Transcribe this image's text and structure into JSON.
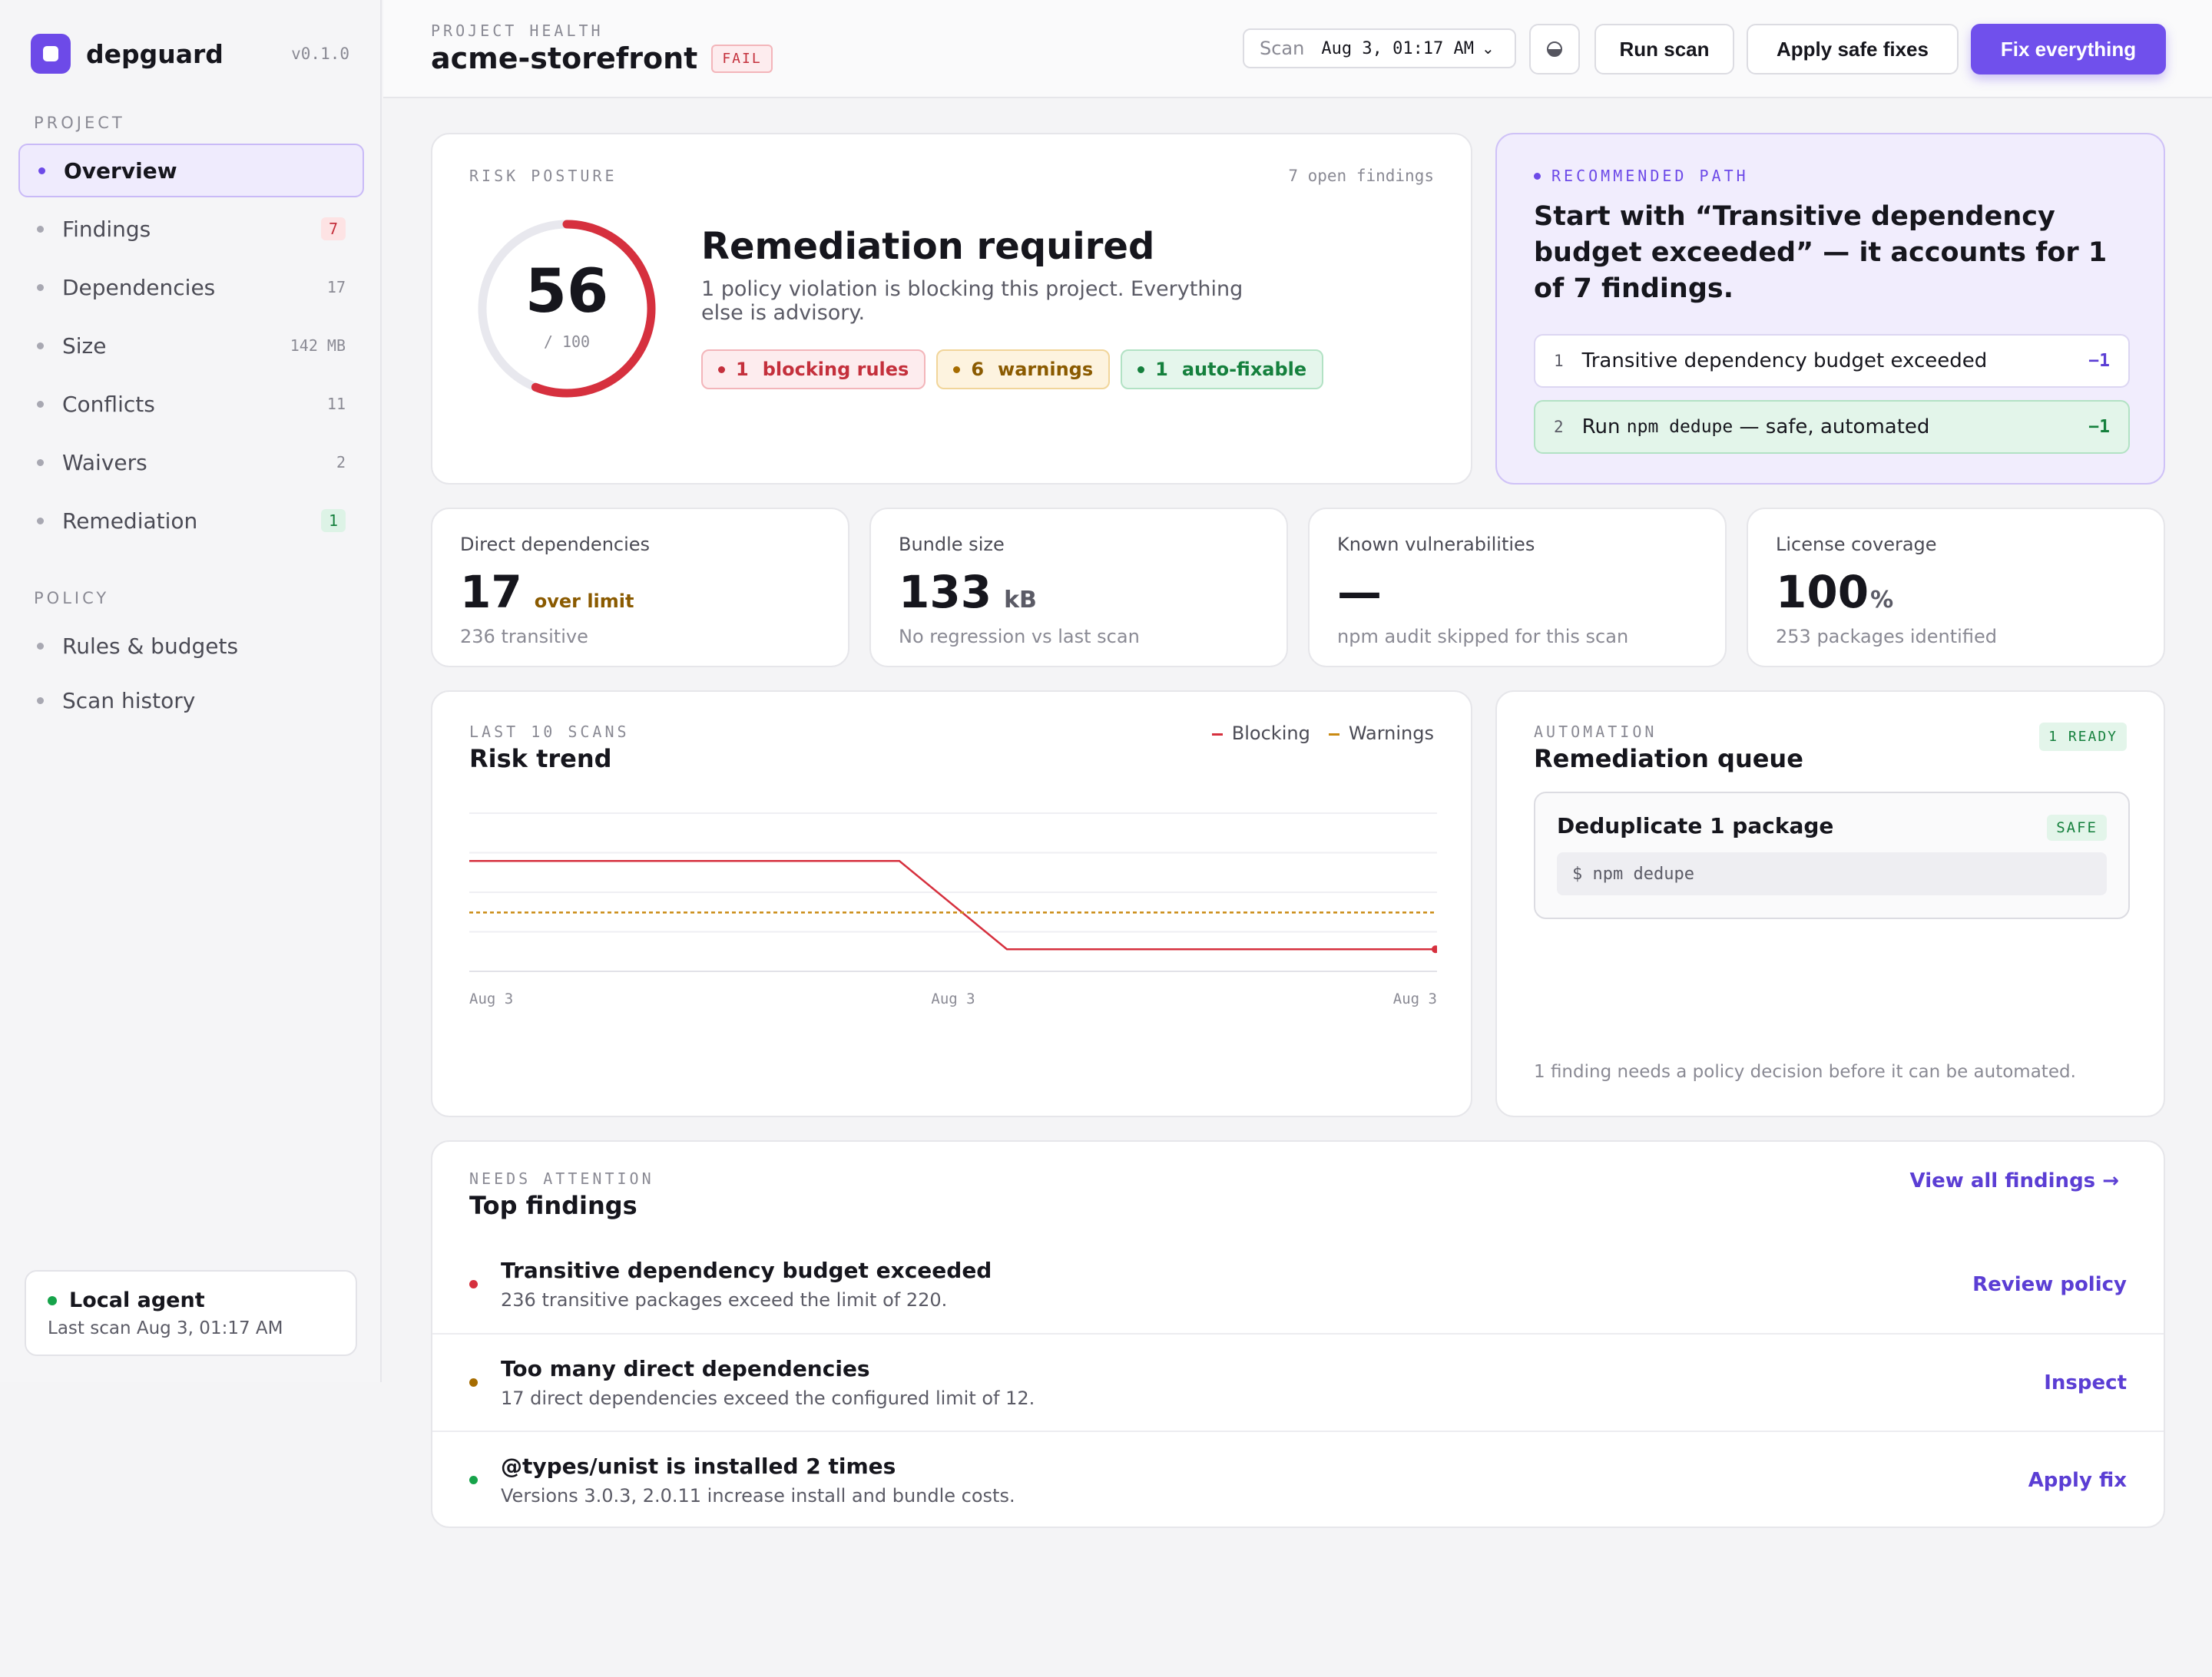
{
  "app": {
    "name": "depguard",
    "version": "v0.1.0"
  },
  "sidebar": {
    "project_label": "PROJECT",
    "items": [
      {
        "label": "Overview",
        "count": ""
      },
      {
        "label": "Findings",
        "count": "7"
      },
      {
        "label": "Dependencies",
        "count": "17"
      },
      {
        "label": "Size",
        "count": "142 MB"
      },
      {
        "label": "Conflicts",
        "count": "11"
      },
      {
        "label": "Waivers",
        "count": "2"
      },
      {
        "label": "Remediation",
        "count": "1"
      }
    ],
    "policy_label": "POLICY",
    "policy_items": [
      {
        "label": "Rules & budgets"
      },
      {
        "label": "Scan history"
      }
    ],
    "agent": {
      "title": "Local agent",
      "subtitle": "Last scan Aug 3, 01:17 AM"
    }
  },
  "header": {
    "label": "PROJECT HEALTH",
    "title": "acme-storefront",
    "status": "FAIL",
    "scan_label": "Scan",
    "scan_value": "Aug 3, 01:17 AM",
    "run_scan": "Run scan",
    "apply_safe": "Apply safe fixes",
    "fix_everything": "Fix everything"
  },
  "posture": {
    "label": "RISK POSTURE",
    "open_findings": "7 open findings",
    "score": "56",
    "score_max": "/ 100",
    "score_fraction": 0.56,
    "title": "Remediation required",
    "description": "1 policy violation is blocking this project. Everything else is advisory.",
    "pills": {
      "blocking_count": "1",
      "blocking_label": "blocking rules",
      "warnings_count": "6",
      "warnings_label": "warnings",
      "autofix_count": "1",
      "autofix_label": "auto-fixable"
    }
  },
  "recommended": {
    "label": "RECOMMENDED PATH",
    "title": "Start with “Transitive dependency budget exceeded” — it accounts for 1 of 7 findings.",
    "step1": {
      "num": "1",
      "text": "Transitive dependency budget exceeded",
      "delta": "−1"
    },
    "step2": {
      "num": "2",
      "text_before": "Run",
      "code": "npm dedupe",
      "text_after": "— safe, automated",
      "delta": "−1"
    }
  },
  "stats": {
    "direct": {
      "label": "Direct dependencies",
      "value": "17",
      "tag": "over limit",
      "sub": "236 transitive"
    },
    "bundle": {
      "label": "Bundle size",
      "value": "133",
      "unit": "kB",
      "sub": "No regression vs last scan"
    },
    "vulns": {
      "label": "Known vulnerabilities",
      "value": "—",
      "sub": "npm audit skipped for this scan"
    },
    "license": {
      "label": "License coverage",
      "value": "100",
      "unit": "%",
      "sub": "253 packages identified"
    }
  },
  "trend": {
    "label": "LAST 10 SCANS",
    "title": "Risk trend",
    "legend_blocking": "Blocking",
    "legend_warnings": "Warnings",
    "colors": {
      "blocking": "#d6303e",
      "warnings": "#c98a12"
    }
  },
  "chart_data": {
    "type": "line",
    "x": [
      "Aug 3",
      "Aug 3",
      "Aug 3",
      "Aug 3",
      "Aug 3",
      "Aug 3",
      "Aug 3",
      "Aug 3",
      "Aug 3",
      "Aug 3"
    ],
    "tick_labels": [
      "Aug 3",
      "Aug 3",
      "Aug 3"
    ],
    "series": [
      {
        "name": "Blocking",
        "values": [
          2.7,
          2.7,
          2.7,
          2.7,
          2.7,
          0.3,
          0.3,
          0.3,
          0.3,
          0.3
        ]
      },
      {
        "name": "Warnings",
        "values": [
          1.3,
          1.3,
          1.3,
          1.3,
          1.3,
          1.3,
          1.3,
          1.3,
          1.3,
          1.3
        ]
      }
    ],
    "ylim": [
      -0.3,
      4
    ],
    "grid": true,
    "legend": "top-right"
  },
  "automation": {
    "label": "AUTOMATION",
    "title": "Remediation queue",
    "ready": "1 READY",
    "item_title": "Deduplicate 1 package",
    "item_badge": "SAFE",
    "item_cmd": "$ npm dedupe",
    "footer": "1 finding needs a policy decision before it can be automated."
  },
  "findings": {
    "label": "NEEDS ATTENTION",
    "title": "Top findings",
    "view_all": "View all findings →",
    "items": [
      {
        "title": "Transitive dependency budget exceeded",
        "desc": "236 transitive packages exceed the limit of 220.",
        "action": "Review policy",
        "color": "#d6303e"
      },
      {
        "title": "Too many direct dependencies",
        "desc": "17 direct dependencies exceed the configured limit of 12.",
        "action": "Inspect",
        "color": "#a66c00"
      },
      {
        "title": "@types/unist is installed 2 times",
        "desc": "Versions 3.0.3, 2.0.11 increase install and bundle costs.",
        "action": "Apply fix",
        "color": "#16a34a"
      }
    ]
  }
}
